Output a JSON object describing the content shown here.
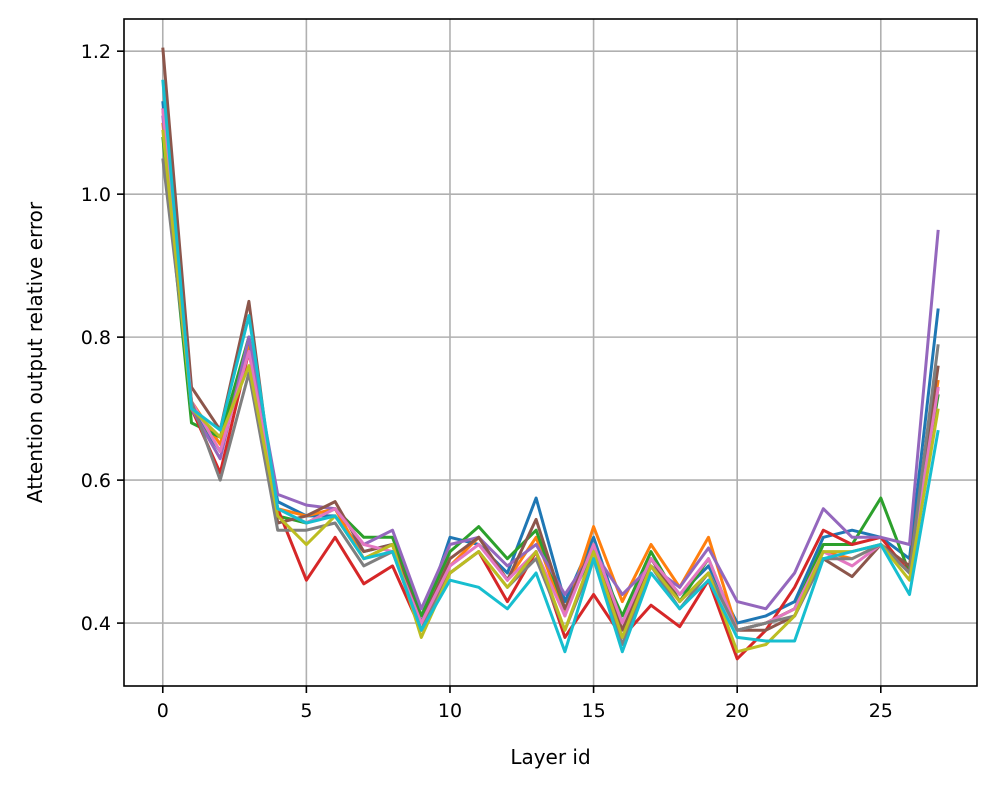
{
  "chart_data": {
    "type": "line",
    "title": "",
    "xlabel": "Layer id",
    "ylabel": "Attention output relative error",
    "xlim": [
      -1.35,
      28.35
    ],
    "ylim": [
      0.312,
      1.245
    ],
    "xticks": [
      0,
      5,
      10,
      15,
      20,
      25
    ],
    "xtick_labels": [
      "0",
      "5",
      "10",
      "15",
      "20",
      "25"
    ],
    "yticks": [
      0.4,
      0.6,
      0.8,
      1.0,
      1.2
    ],
    "ytick_labels": [
      "0.4",
      "0.6",
      "0.8",
      "1.0",
      "1.2"
    ],
    "grid": true,
    "legend": "none",
    "x": [
      0,
      1,
      2,
      3,
      4,
      5,
      6,
      7,
      8,
      9,
      10,
      11,
      12,
      13,
      14,
      15,
      16,
      17,
      18,
      19,
      20,
      21,
      22,
      23,
      24,
      25,
      26,
      27
    ],
    "series": [
      {
        "color": "#1f77b4",
        "values": [
          1.13,
          0.7,
          0.64,
          0.8,
          0.57,
          0.55,
          0.55,
          0.5,
          0.51,
          0.4,
          0.52,
          0.51,
          0.47,
          0.575,
          0.43,
          0.52,
          0.4,
          0.49,
          0.44,
          0.48,
          0.4,
          0.41,
          0.43,
          0.52,
          0.53,
          0.52,
          0.49,
          0.84
        ]
      },
      {
        "color": "#ff7f0e",
        "values": [
          1.1,
          0.71,
          0.65,
          0.79,
          0.56,
          0.55,
          0.56,
          0.49,
          0.51,
          0.39,
          0.48,
          0.52,
          0.46,
          0.52,
          0.41,
          0.535,
          0.43,
          0.51,
          0.45,
          0.52,
          0.39,
          0.4,
          0.42,
          0.5,
          0.49,
          0.51,
          0.48,
          0.74
        ]
      },
      {
        "color": "#2ca02c",
        "values": [
          1.08,
          0.68,
          0.66,
          0.8,
          0.55,
          0.54,
          0.56,
          0.52,
          0.52,
          0.41,
          0.5,
          0.535,
          0.49,
          0.53,
          0.42,
          0.5,
          0.41,
          0.5,
          0.43,
          0.49,
          0.39,
          0.4,
          0.42,
          0.51,
          0.51,
          0.575,
          0.47,
          0.72
        ]
      },
      {
        "color": "#d62728",
        "values": [
          1.12,
          0.7,
          0.61,
          0.78,
          0.56,
          0.46,
          0.52,
          0.455,
          0.48,
          0.39,
          0.47,
          0.5,
          0.43,
          0.5,
          0.38,
          0.44,
          0.38,
          0.425,
          0.395,
          0.46,
          0.35,
          0.39,
          0.45,
          0.53,
          0.51,
          0.52,
          0.47,
          0.73
        ]
      },
      {
        "color": "#9467bd",
        "values": [
          1.11,
          0.7,
          0.63,
          0.8,
          0.58,
          0.565,
          0.56,
          0.51,
          0.53,
          0.42,
          0.51,
          0.52,
          0.48,
          0.51,
          0.44,
          0.5,
          0.44,
          0.48,
          0.45,
          0.505,
          0.43,
          0.42,
          0.47,
          0.56,
          0.52,
          0.52,
          0.51,
          0.95
        ]
      },
      {
        "color": "#8c564b",
        "values": [
          1.205,
          0.73,
          0.67,
          0.85,
          0.54,
          0.55,
          0.57,
          0.5,
          0.51,
          0.4,
          0.49,
          0.52,
          0.46,
          0.545,
          0.42,
          0.51,
          0.39,
          0.49,
          0.43,
          0.47,
          0.39,
          0.39,
          0.41,
          0.49,
          0.465,
          0.51,
          0.48,
          0.76
        ]
      },
      {
        "color": "#e377c2",
        "values": [
          1.12,
          0.71,
          0.64,
          0.78,
          0.56,
          0.54,
          0.56,
          0.51,
          0.5,
          0.4,
          0.48,
          0.51,
          0.46,
          0.5,
          0.41,
          0.51,
          0.4,
          0.49,
          0.44,
          0.49,
          0.39,
          0.4,
          0.42,
          0.5,
          0.48,
          0.51,
          0.47,
          0.73
        ]
      },
      {
        "color": "#7f7f7f",
        "values": [
          1.05,
          0.71,
          0.6,
          0.75,
          0.53,
          0.53,
          0.54,
          0.48,
          0.5,
          0.39,
          0.47,
          0.5,
          0.45,
          0.49,
          0.39,
          0.49,
          0.37,
          0.48,
          0.42,
          0.47,
          0.39,
          0.4,
          0.41,
          0.49,
          0.49,
          0.51,
          0.47,
          0.79
        ]
      },
      {
        "color": "#bcbd22",
        "values": [
          1.09,
          0.7,
          0.66,
          0.76,
          0.55,
          0.51,
          0.55,
          0.49,
          0.51,
          0.38,
          0.47,
          0.5,
          0.45,
          0.5,
          0.39,
          0.5,
          0.38,
          0.48,
          0.43,
          0.47,
          0.36,
          0.37,
          0.41,
          0.5,
          0.5,
          0.51,
          0.46,
          0.7
        ]
      },
      {
        "color": "#17becf",
        "values": [
          1.16,
          0.7,
          0.67,
          0.83,
          0.56,
          0.54,
          0.55,
          0.49,
          0.5,
          0.39,
          0.46,
          0.45,
          0.42,
          0.47,
          0.36,
          0.49,
          0.36,
          0.47,
          0.42,
          0.46,
          0.38,
          0.375,
          0.375,
          0.49,
          0.5,
          0.51,
          0.44,
          0.67
        ]
      }
    ]
  }
}
